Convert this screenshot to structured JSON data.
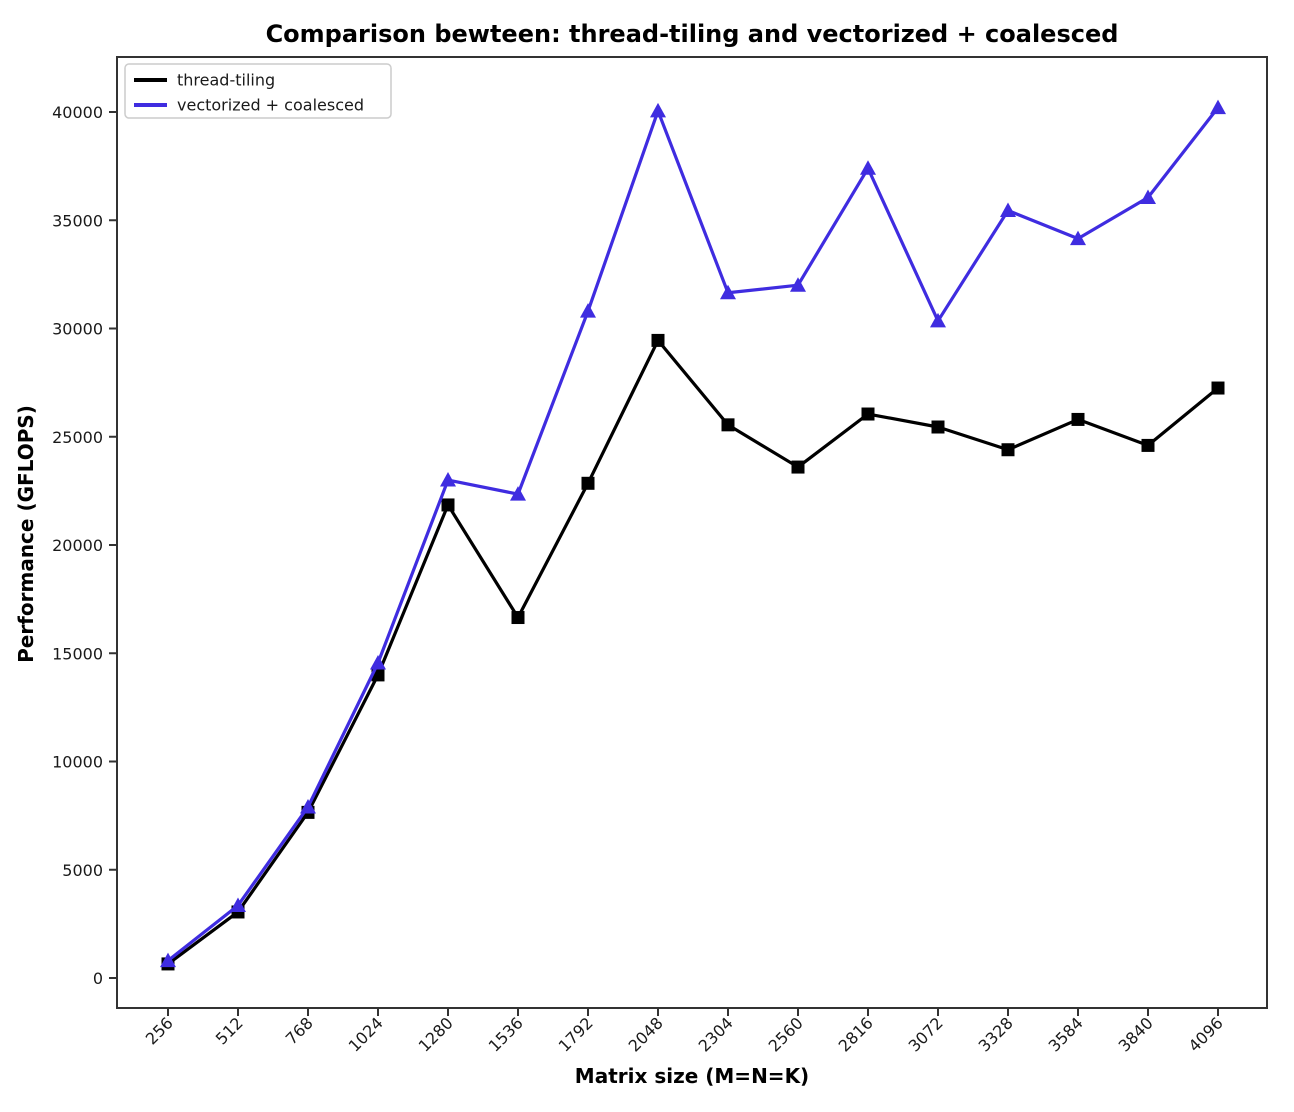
{
  "figure": {
    "background_color": "#ffffff",
    "axes_color": "#333333"
  },
  "chart_data": {
    "type": "line",
    "title": "Comparison bewteen: thread-tiling and vectorized + coalesced",
    "xlabel": "Matrix size (M=N=K)",
    "ylabel": "Performance (GFLOPS)",
    "categories": [
      256,
      512,
      768,
      1024,
      1280,
      1536,
      1792,
      2048,
      2304,
      2560,
      2816,
      3072,
      3328,
      3584,
      3840,
      4096
    ],
    "x_tick_labels": [
      "256",
      "512",
      "768",
      "1024",
      "1280",
      "1536",
      "1792",
      "2048",
      "2304",
      "2560",
      "2816",
      "3072",
      "3328",
      "3584",
      "3840",
      "4096"
    ],
    "x_tick_rotation_deg": 45,
    "yticks": [
      0,
      5000,
      10000,
      15000,
      20000,
      25000,
      30000,
      35000,
      40000
    ],
    "ylim": [
      0,
      42600
    ],
    "grid": false,
    "legend": {
      "position": "upper-left",
      "entries": [
        "thread-tiling",
        "vectorized + coalesced"
      ]
    },
    "series": [
      {
        "name": "thread-tiling",
        "color": "#000000",
        "marker": "square",
        "values": [
          650,
          3050,
          7650,
          14000,
          21850,
          16650,
          22850,
          29450,
          25550,
          23600,
          26050,
          25450,
          24400,
          25800,
          24600,
          27250
        ]
      },
      {
        "name": "vectorized + coalesced",
        "color": "#3f2ce0",
        "marker": "triangle-up",
        "values": [
          800,
          3350,
          7900,
          14550,
          23000,
          22350,
          30800,
          40050,
          31650,
          32000,
          37400,
          30350,
          35450,
          34150,
          36050,
          40200
        ]
      }
    ]
  }
}
